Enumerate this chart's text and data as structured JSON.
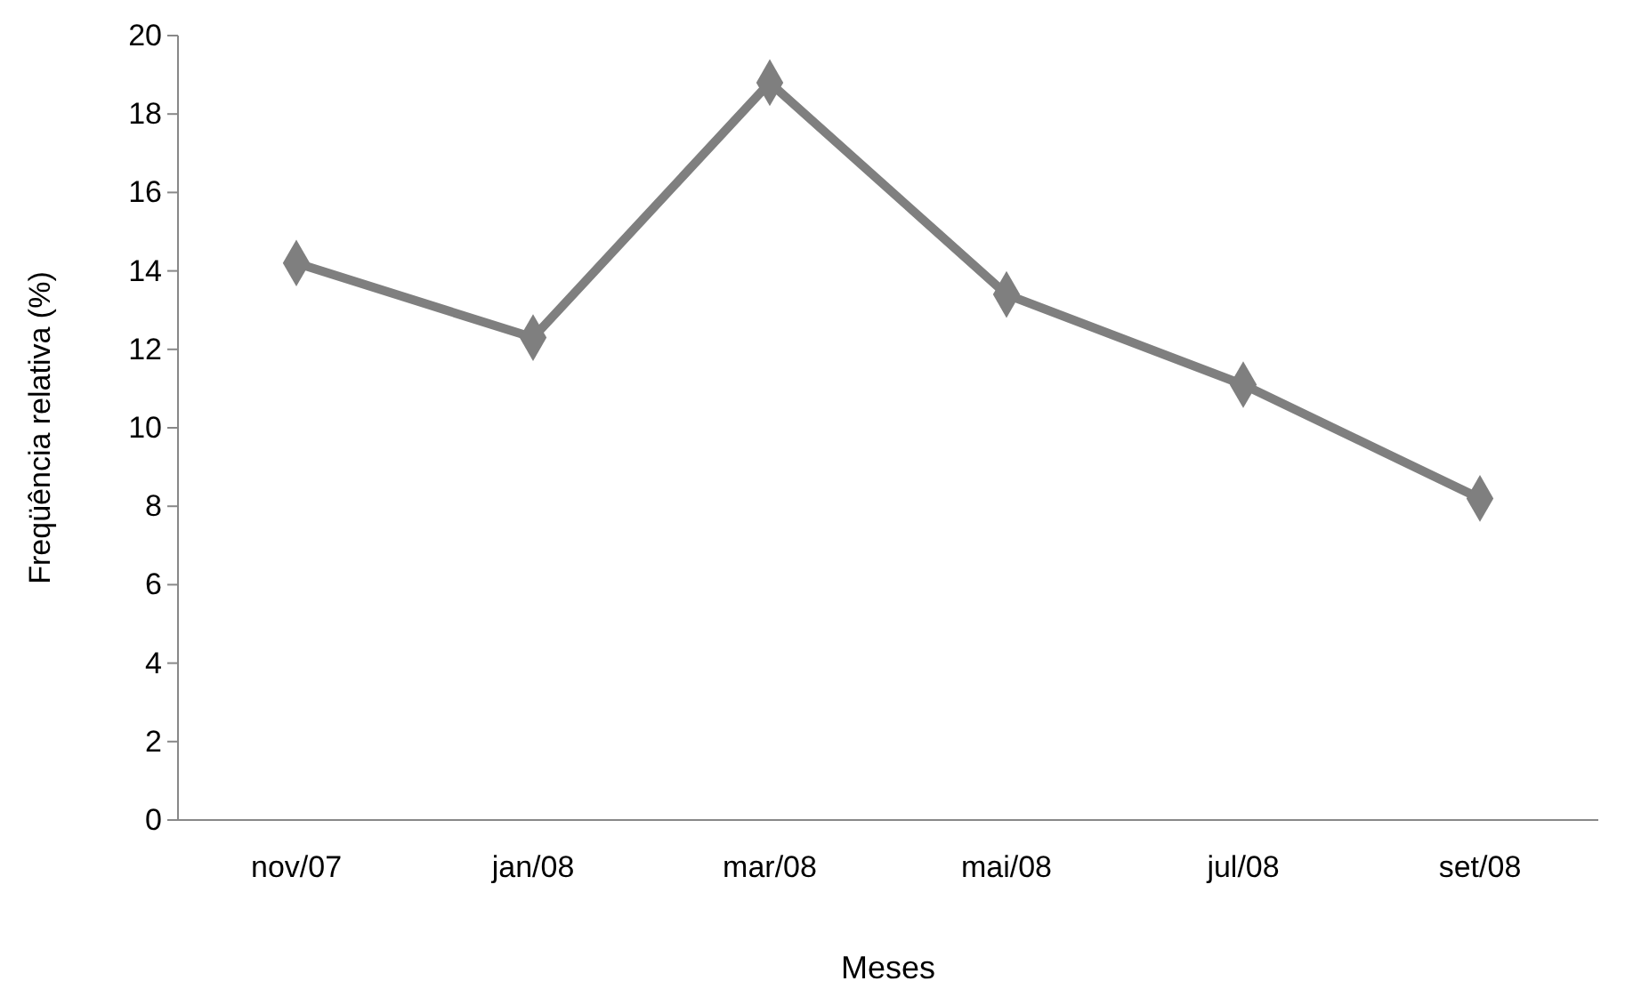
{
  "chart_data": {
    "type": "line",
    "xlabel": "Meses",
    "ylabel": "Freqüência relativa (%)",
    "categories": [
      "nov/07",
      "jan/08",
      "mar/08",
      "mai/08",
      "jul/08",
      "set/08"
    ],
    "series": [
      {
        "color": "#7f7f7f",
        "values": [
          14.2,
          12.3,
          18.8,
          13.4,
          11.1,
          8.2
        ]
      }
    ],
    "ylim": [
      0,
      20
    ],
    "yticks": [
      0,
      2,
      4,
      6,
      8,
      10,
      12,
      14,
      16,
      18,
      20
    ],
    "grid": false,
    "marker": "diamond",
    "line_style": "solid"
  }
}
